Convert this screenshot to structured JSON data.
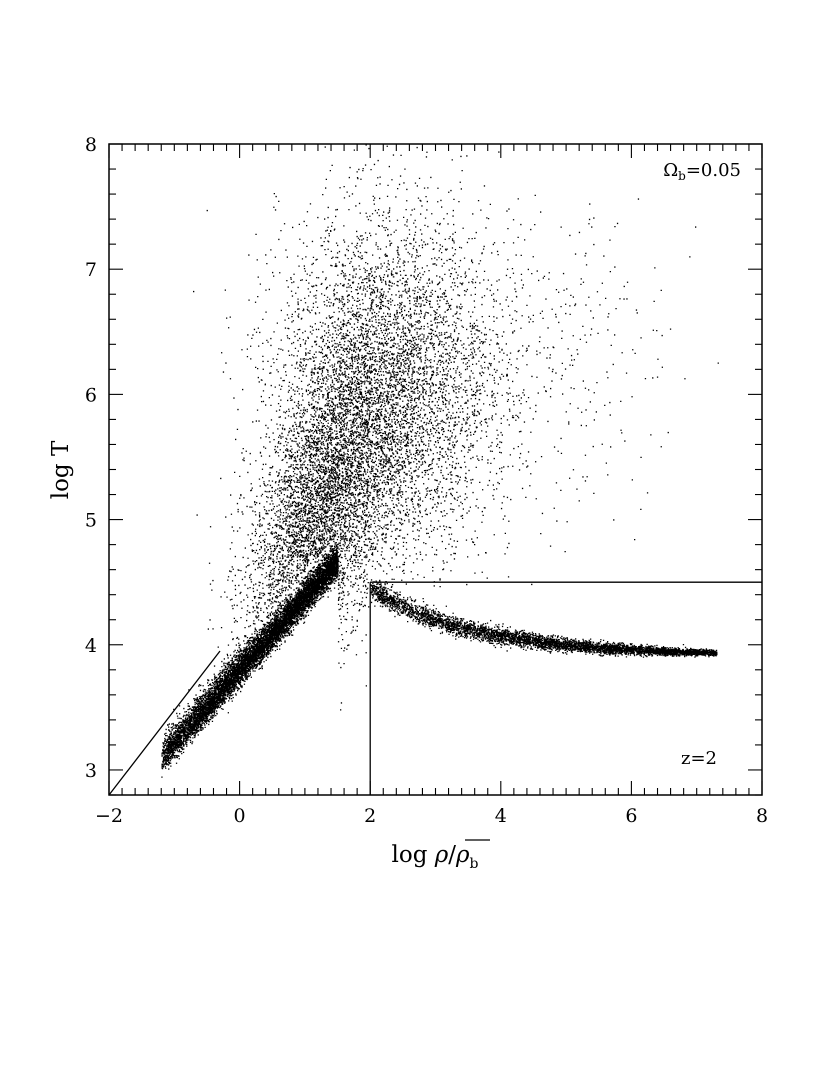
{
  "chart_data": {
    "type": "scatter",
    "xlabel": "log  ρ/ρ̄_b",
    "xlabel_main": "log  ",
    "xlabel_rho": "ρ",
    "xlabel_slash": "/",
    "xlabel_rho_bar": "ρ",
    "xlabel_sub": "b",
    "ylabel": "log T",
    "xlim": [
      -2,
      8
    ],
    "ylim": [
      2.8,
      8
    ],
    "xticks": [
      -2,
      0,
      2,
      4,
      6,
      8
    ],
    "yticks": [
      3,
      4,
      5,
      6,
      7,
      8
    ],
    "xtick_labels": [
      "−2",
      "0",
      "2",
      "4",
      "6",
      "8"
    ],
    "ytick_labels": [
      "3",
      "4",
      "5",
      "6",
      "7",
      "8"
    ],
    "annotations": {
      "omega_symbol": "Ω",
      "omega_sub": "b",
      "omega_value": "=0.05",
      "redshift": "z=2"
    },
    "reference_lines": [
      {
        "name": "horizontal-threshold",
        "x": [
          2,
          8
        ],
        "y": [
          4.5,
          4.5
        ]
      },
      {
        "name": "vertical-threshold",
        "x": [
          2,
          2
        ],
        "y": [
          2.8,
          4.5
        ]
      },
      {
        "name": "diagonal-line",
        "x": [
          -2,
          -0.3
        ],
        "y": [
          2.8,
          3.95
        ]
      }
    ],
    "particle_populations": [
      {
        "name": "eos-ridge",
        "x_range": [
          -1.2,
          1.5
        ],
        "y_at_x_min": 3.05,
        "slope": 0.58,
        "points": 9000
      },
      {
        "name": "shocked-plume",
        "center": [
          1.2,
          5.0
        ],
        "spread": [
          0.55,
          0.55
        ],
        "points": 9000
      },
      {
        "name": "hot-halo",
        "center": [
          2.2,
          6.0
        ],
        "spread": [
          0.8,
          0.7
        ],
        "points": 6000
      },
      {
        "name": "cooling-branch",
        "x_range": [
          2.0,
          7.3
        ],
        "y_start": 4.45,
        "y_end": 3.92,
        "points": 5000
      },
      {
        "name": "sparse-hot",
        "center": [
          3.5,
          6.3
        ],
        "spread": [
          1.4,
          0.6
        ],
        "points": 900
      }
    ]
  }
}
